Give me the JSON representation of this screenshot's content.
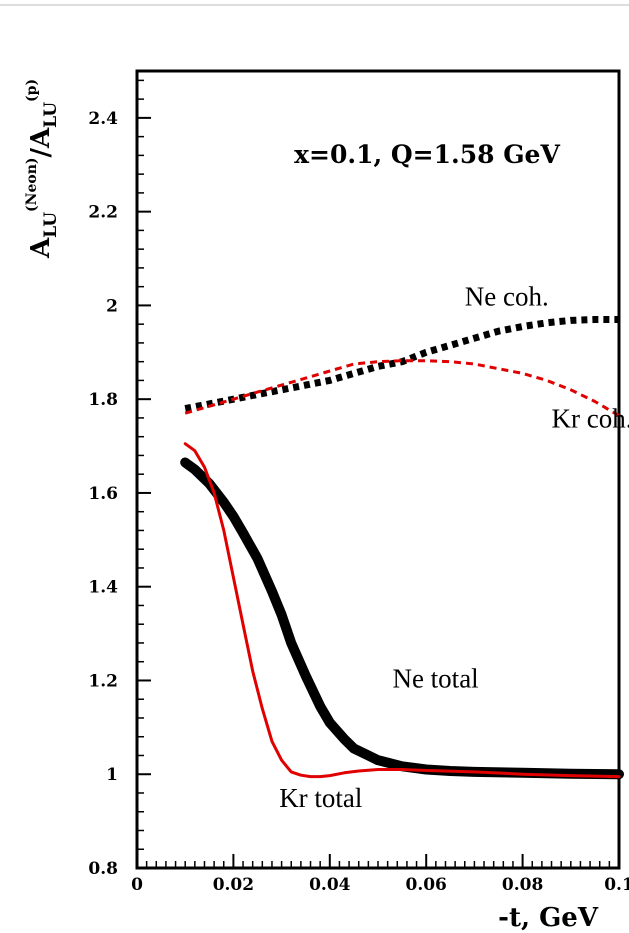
{
  "chart_data": {
    "type": "line",
    "title": "x=0.1, Q=1.58 GeV",
    "xlabel": "-t, GeV",
    "ylabel": {
      "base": "A",
      "sub1": "LU",
      "sup1": "(Neon)",
      "slash": "/A",
      "sub2": "LU",
      "sup2": "(p)"
    },
    "xlim": [
      0,
      0.1
    ],
    "ylim": [
      0.8,
      2.5
    ],
    "xticks": [
      0,
      0.02,
      0.04,
      0.06,
      0.08,
      0.1
    ],
    "xtick_labels": [
      "0",
      "0.02",
      "0.04",
      "0.06",
      "0.08",
      "0.1"
    ],
    "yticks": [
      0.8,
      1,
      1.2,
      1.4,
      1.6,
      1.8,
      2,
      2.2,
      2.4
    ],
    "ytick_labels": [
      "0.8",
      "1",
      "1.2",
      "1.4",
      "1.6",
      "1.8",
      "2",
      "2.2",
      "2.4"
    ],
    "grid": false,
    "series": [
      {
        "name": "Ne coh.",
        "color": "#000000",
        "style": "dashed-thick",
        "x": [
          0.01,
          0.015,
          0.02,
          0.025,
          0.03,
          0.035,
          0.04,
          0.045,
          0.05,
          0.055,
          0.06,
          0.065,
          0.07,
          0.075,
          0.08,
          0.085,
          0.09,
          0.095,
          0.1
        ],
        "y": [
          1.78,
          1.79,
          1.8,
          1.81,
          1.82,
          1.83,
          1.84,
          1.855,
          1.87,
          1.88,
          1.9,
          1.915,
          1.93,
          1.945,
          1.955,
          1.963,
          1.968,
          1.97,
          1.97
        ]
      },
      {
        "name": "Kr coh.",
        "color": "#e00000",
        "style": "dashed",
        "x": [
          0.01,
          0.015,
          0.02,
          0.025,
          0.03,
          0.035,
          0.04,
          0.045,
          0.05,
          0.055,
          0.06,
          0.065,
          0.07,
          0.075,
          0.08,
          0.085,
          0.09,
          0.095,
          0.1
        ],
        "y": [
          1.77,
          1.785,
          1.8,
          1.815,
          1.83,
          1.845,
          1.86,
          1.875,
          1.88,
          1.882,
          1.882,
          1.88,
          1.875,
          1.865,
          1.855,
          1.84,
          1.82,
          1.795,
          1.765
        ]
      },
      {
        "name": "Ne total",
        "color": "#000000",
        "style": "solid-thick",
        "x": [
          0.01,
          0.012,
          0.015,
          0.018,
          0.02,
          0.022,
          0.025,
          0.028,
          0.03,
          0.032,
          0.035,
          0.038,
          0.04,
          0.043,
          0.045,
          0.048,
          0.05,
          0.055,
          0.06,
          0.065,
          0.07,
          0.08,
          0.09,
          0.1
        ],
        "y": [
          1.665,
          1.65,
          1.62,
          1.58,
          1.55,
          1.515,
          1.46,
          1.39,
          1.34,
          1.28,
          1.21,
          1.145,
          1.11,
          1.075,
          1.055,
          1.04,
          1.03,
          1.017,
          1.01,
          1.007,
          1.005,
          1.003,
          1.001,
          1.0
        ]
      },
      {
        "name": "Kr total",
        "color": "#e00000",
        "style": "solid",
        "x": [
          0.01,
          0.012,
          0.014,
          0.016,
          0.018,
          0.02,
          0.022,
          0.024,
          0.026,
          0.028,
          0.03,
          0.032,
          0.034,
          0.036,
          0.038,
          0.04,
          0.043,
          0.046,
          0.05,
          0.055,
          0.06,
          0.07,
          0.08,
          0.09,
          0.1
        ],
        "y": [
          1.705,
          1.69,
          1.655,
          1.6,
          1.52,
          1.42,
          1.32,
          1.22,
          1.14,
          1.07,
          1.03,
          1.005,
          0.998,
          0.995,
          0.995,
          0.997,
          1.003,
          1.007,
          1.01,
          1.01,
          1.008,
          1.005,
          1.0,
          0.997,
          0.995
        ]
      }
    ],
    "annotations": [
      {
        "text": "Ne coh.",
        "x": 0.068,
        "y": 2.0
      },
      {
        "text": "Kr coh.",
        "x": 0.086,
        "y": 1.74
      },
      {
        "text": "Ne total",
        "x": 0.053,
        "y": 1.185
      },
      {
        "text": "Kr total",
        "x": 0.0295,
        "y": 0.93
      }
    ]
  }
}
